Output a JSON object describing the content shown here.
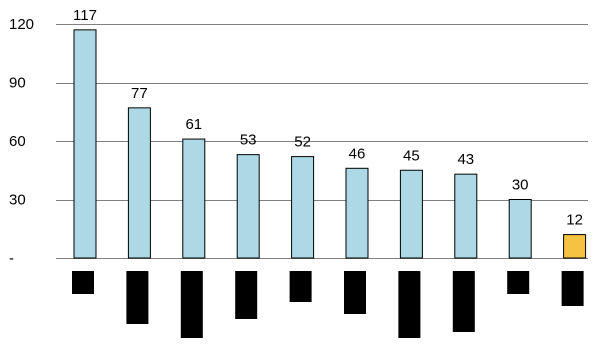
{
  "chart_data": {
    "type": "bar",
    "categories": [
      "",
      "",
      "",
      "",
      "",
      "",
      "",
      "",
      "",
      ""
    ],
    "values": [
      117,
      77,
      61,
      53,
      52,
      46,
      45,
      43,
      30,
      12
    ],
    "data_labels": [
      "117",
      "77",
      "61",
      "53",
      "52",
      "46",
      "45",
      "43",
      "30",
      "12"
    ],
    "bar_colors": [
      "#add8e6",
      "#add8e6",
      "#add8e6",
      "#add8e6",
      "#add8e6",
      "#add8e6",
      "#add8e6",
      "#add8e6",
      "#add8e6",
      "#f5c242"
    ],
    "ylim": [
      0,
      120
    ],
    "yticks": [
      0,
      30,
      60,
      90,
      120
    ],
    "ytick_labels": [
      "-",
      "30",
      "60",
      "90",
      "120"
    ],
    "grid": true,
    "gridline_color": "#808080",
    "bar_edge_color": "#000000",
    "redacted_category_label_color": "#000000",
    "redacted_category_label_levels": [
      0.32,
      0.72,
      0.92,
      0.66,
      0.42,
      0.59,
      0.92,
      0.84,
      0.32,
      0.48
    ]
  }
}
